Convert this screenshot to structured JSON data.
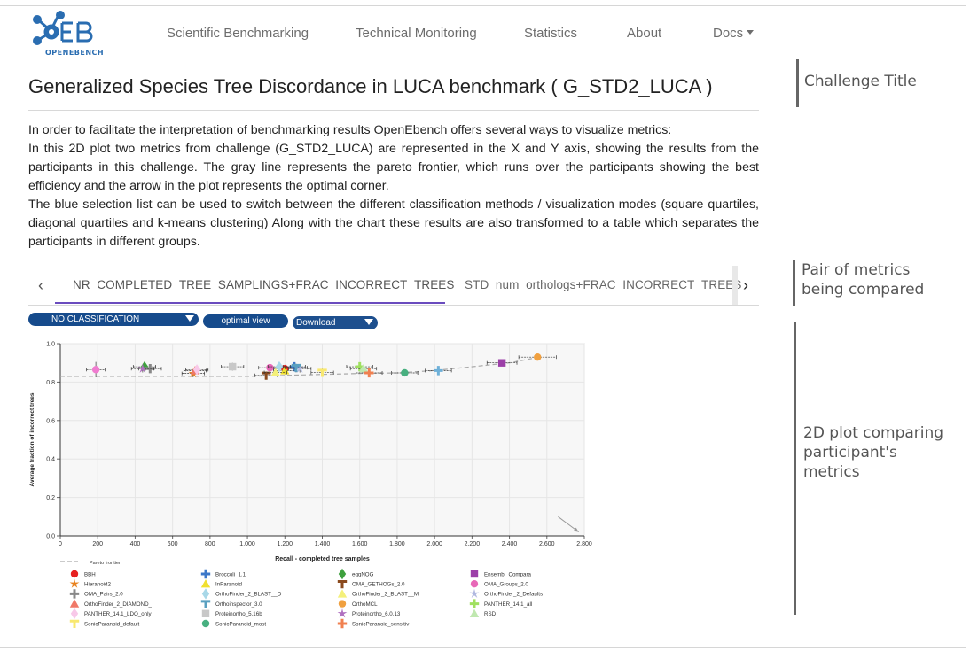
{
  "brand": {
    "name": "OPENEBENCH"
  },
  "nav": [
    {
      "label": "Scientific Benchmarking"
    },
    {
      "label": "Technical Monitoring"
    },
    {
      "label": "Statistics"
    },
    {
      "label": "About"
    },
    {
      "label": "Docs"
    }
  ],
  "page_title": "Generalized Species Tree Discordance in LUCA benchmark ( G_STD2_LUCA )",
  "description": [
    "In order to facilitate the interpretation of benchmarking results OpenEbench offers several ways to visualize metrics:",
    "In this 2D plot two metrics from challenge (G_STD2_LUCA) are represented in the X and Y axis, showing the results from the participants in this challenge. The gray line represents the pareto frontier, which runs over the participants showing the best efficiency and the arrow in the plot represents the optimal corner.",
    "The blue selection list can be used to switch between the different classification methods / visualization modes (square quartiles, diagonal quartiles and k-means clustering) Along with the chart these results are also transformed to a table which separates the participants in different groups."
  ],
  "tabs": [
    {
      "label": "NR_COMPLETED_TREE_SAMPLINGS+FRAC_INCORRECT_TREES"
    },
    {
      "label": "STD_num_orthologs+FRAC_INCORRECT_TREES"
    }
  ],
  "controls": {
    "classification": "NO CLASSIFICATION",
    "optimal": "optimal view",
    "download": "Download"
  },
  "annotations": {
    "challenge_title": "Challenge Title",
    "pair_of_metrics": "Pair of metrics being compared",
    "plot_2d": "2D plot comparing participant's metrics"
  },
  "chart_data": {
    "type": "scatter",
    "xlabel": "Recall - completed tree samples",
    "ylabel": "Average fraction of incorrect trees",
    "xlim": [
      0,
      2800
    ],
    "ylim": [
      0,
      1.0
    ],
    "xticks": [
      "0",
      "200",
      "400",
      "600",
      "800",
      "1,000",
      "1,200",
      "1,400",
      "1,600",
      "1,800",
      "2,000",
      "2,200",
      "2,400",
      "2,600",
      "2,800"
    ],
    "yticks": [
      "0.0",
      "0.2",
      "0.4",
      "0.6",
      "0.8",
      "1.0"
    ],
    "grid": true,
    "pareto_label": "Pareto frontier",
    "optimal_corner": "bottom-right",
    "pareto_frontier": [
      [
        0,
        0.83
      ],
      [
        1000,
        0.83
      ],
      [
        1600,
        0.845
      ],
      [
        1800,
        0.848
      ],
      [
        2000,
        0.86
      ],
      [
        2400,
        0.9
      ],
      [
        2560,
        0.93
      ]
    ],
    "series": [
      {
        "name": "BBH",
        "color": "#e62020",
        "shape": "circle",
        "x": 1200,
        "y": 0.87,
        "xerr": 60,
        "yerr": 0.02
      },
      {
        "name": "Broccoli_1.1",
        "color": "#3c78c8",
        "shape": "cross",
        "x": 1250,
        "y": 0.88,
        "xerr": 60,
        "yerr": 0.02
      },
      {
        "name": "eggNOG",
        "color": "#3ea03e",
        "shape": "diamond",
        "x": 450,
        "y": 0.88,
        "xerr": 60,
        "yerr": 0.02
      },
      {
        "name": "Ensembl_Compara",
        "color": "#9c3fa8",
        "shape": "square",
        "x": 2360,
        "y": 0.9,
        "xerr": 80,
        "yerr": 0.015
      },
      {
        "name": "Hieranoid2",
        "color": "#e8821e",
        "shape": "star",
        "x": 710,
        "y": 0.845,
        "xerr": 60,
        "yerr": 0.02
      },
      {
        "name": "InParanoid",
        "color": "#f0e030",
        "shape": "triangle",
        "x": 1200,
        "y": 0.86,
        "xerr": 60,
        "yerr": 0.02
      },
      {
        "name": "OMA_GETHOGs_2.0",
        "color": "#8a4a1e",
        "shape": "tee",
        "x": 1100,
        "y": 0.835,
        "xerr": 60,
        "yerr": 0.02
      },
      {
        "name": "OMA_Groups_2.0",
        "color": "#e868b8",
        "shape": "circle",
        "x": 1120,
        "y": 0.875,
        "xerr": 60,
        "yerr": 0.02
      },
      {
        "name": "OMA_Pairs_2.0",
        "color": "#888888",
        "shape": "cross",
        "x": 480,
        "y": 0.87,
        "xerr": 60,
        "yerr": 0.02
      },
      {
        "name": "OrthoFinder_2_BLAST__D",
        "color": "#a8d8e8",
        "shape": "diamond",
        "x": 1170,
        "y": 0.88,
        "xerr": 60,
        "yerr": 0.02
      },
      {
        "name": "OrthoFinder_2_BLAST__M",
        "color": "#f4f07a",
        "shape": "triangle",
        "x": 1150,
        "y": 0.85,
        "xerr": 60,
        "yerr": 0.02
      },
      {
        "name": "OrthoFinder_2_Defaults",
        "color": "#b0b8e0",
        "shape": "star",
        "x": 1280,
        "y": 0.87,
        "xerr": 60,
        "yerr": 0.02
      },
      {
        "name": "OrthoFinder_2_DIAMOND_",
        "color": "#f07868",
        "shape": "triangle",
        "x": 720,
        "y": 0.86,
        "xerr": 60,
        "yerr": 0.02
      },
      {
        "name": "Orthoinspector_3.0",
        "color": "#5aa0c0",
        "shape": "tee",
        "x": 1260,
        "y": 0.875,
        "xerr": 60,
        "yerr": 0.02
      },
      {
        "name": "OrthoMCL",
        "color": "#f0a040",
        "shape": "circle",
        "x": 2550,
        "y": 0.93,
        "xerr": 100,
        "yerr": 0.015
      },
      {
        "name": "PANTHER_14.1_all",
        "color": "#a0e060",
        "shape": "cross",
        "x": 1600,
        "y": 0.88,
        "xerr": 70,
        "yerr": 0.02
      },
      {
        "name": "PANTHER_14.1_LDO_only",
        "color": "#f8c8e8",
        "shape": "diamond",
        "x": 730,
        "y": 0.865,
        "xerr": 60,
        "yerr": 0.02
      },
      {
        "name": "Proteinortho_5.16b",
        "color": "#c8c8c8",
        "shape": "square",
        "x": 920,
        "y": 0.88,
        "xerr": 60,
        "yerr": 0.02
      },
      {
        "name": "Proteinortho_6.0.13",
        "color": "#b070c0",
        "shape": "star",
        "x": 440,
        "y": 0.87,
        "xerr": 60,
        "yerr": 0.02
      },
      {
        "name": "RSD",
        "color": "#c0e8b0",
        "shape": "triangle",
        "x": 1620,
        "y": 0.87,
        "xerr": 70,
        "yerr": 0.02
      },
      {
        "name": "SonicParanoid_default",
        "color": "#f8e870",
        "shape": "tee",
        "x": 1400,
        "y": 0.85,
        "xerr": 60,
        "yerr": 0.02
      },
      {
        "name": "SonicParanoid_most",
        "color": "#48b080",
        "shape": "circle",
        "x": 1840,
        "y": 0.848,
        "xerr": 70,
        "yerr": 0.015
      },
      {
        "name": "SonicParanoid_sensitiv",
        "color": "#f08050",
        "shape": "cross",
        "x": 1650,
        "y": 0.848,
        "xerr": 70,
        "yerr": 0.015
      },
      {
        "name": "",
        "color": "#f07cd0",
        "shape": "circle",
        "x": 190,
        "y": 0.865,
        "xerr": 50,
        "yerr": 0.04
      },
      {
        "name": "",
        "color": "#6eb0d8",
        "shape": "cross",
        "x": 2020,
        "y": 0.86,
        "xerr": 70,
        "yerr": 0.015
      }
    ],
    "legend_order": [
      "BBH",
      "Broccoli_1.1",
      "eggNOG",
      "Ensembl_Compara",
      "Hieranoid2",
      "InParanoid",
      "OMA_GETHOGs_2.0",
      "OMA_Groups_2.0",
      "OMA_Pairs_2.0",
      "OrthoFinder_2_BLAST__D",
      "OrthoFinder_2_BLAST__M",
      "OrthoFinder_2_Defaults",
      "OrthoFinder_2_DIAMOND_",
      "Orthoinspector_3.0",
      "OrthoMCL",
      "PANTHER_14.1_all",
      "PANTHER_14.1_LDO_only",
      "Proteinortho_5.16b",
      "Proteinortho_6.0.13",
      "RSD",
      "SonicParanoid_default",
      "SonicParanoid_most",
      "SonicParanoid_sensitiv"
    ]
  }
}
